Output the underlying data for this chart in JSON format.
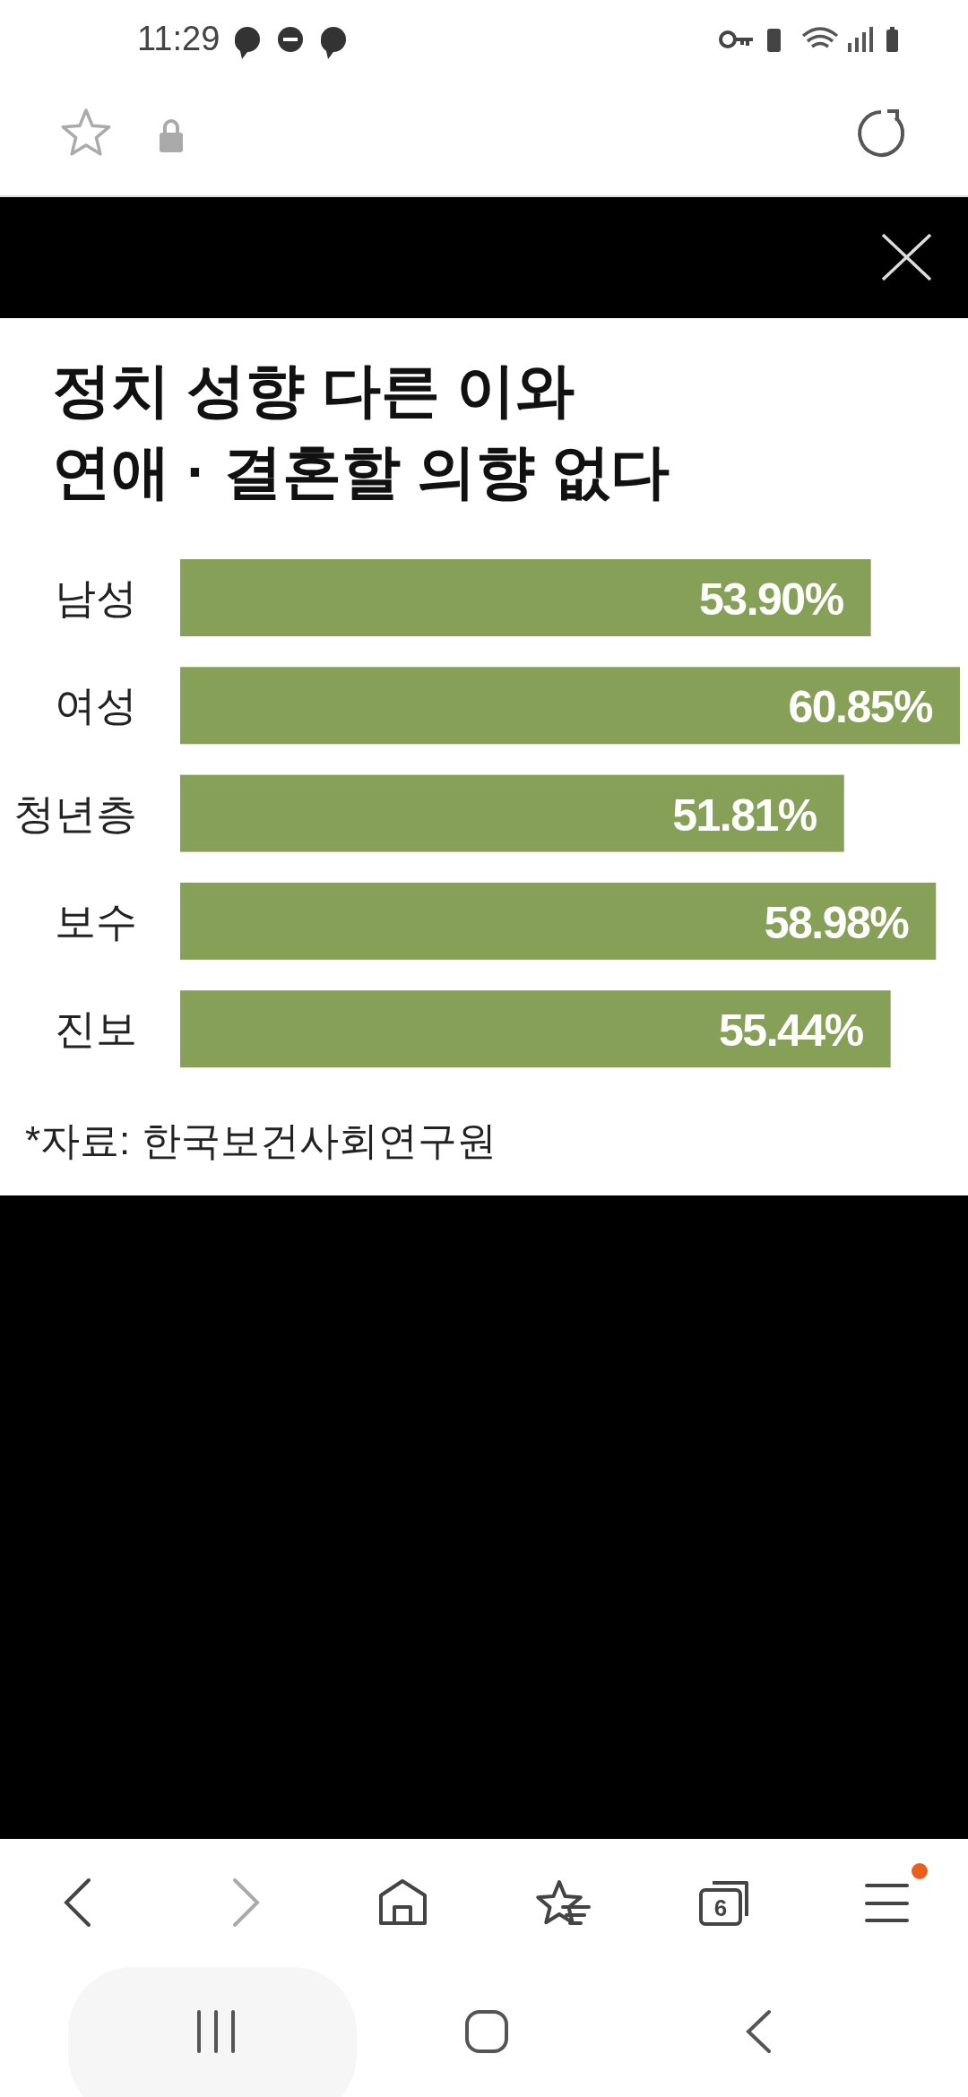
{
  "chart_data": {
    "type": "bar",
    "orientation": "horizontal",
    "title": "정치 성향 다른 이와\n연애 · 결혼할 의향 없다",
    "categories": [
      "남성",
      "여성",
      "청년층",
      "보수",
      "진보"
    ],
    "values": [
      53.9,
      60.85,
      51.81,
      58.98,
      55.44
    ],
    "value_labels": [
      "53.90%",
      "60.85%",
      "51.81%",
      "58.98%",
      "55.44%"
    ],
    "color": "#87a058",
    "annotations": [
      "*자료: 한국보건사회연구원",
      "11:29",
      "6"
    ]
  }
}
